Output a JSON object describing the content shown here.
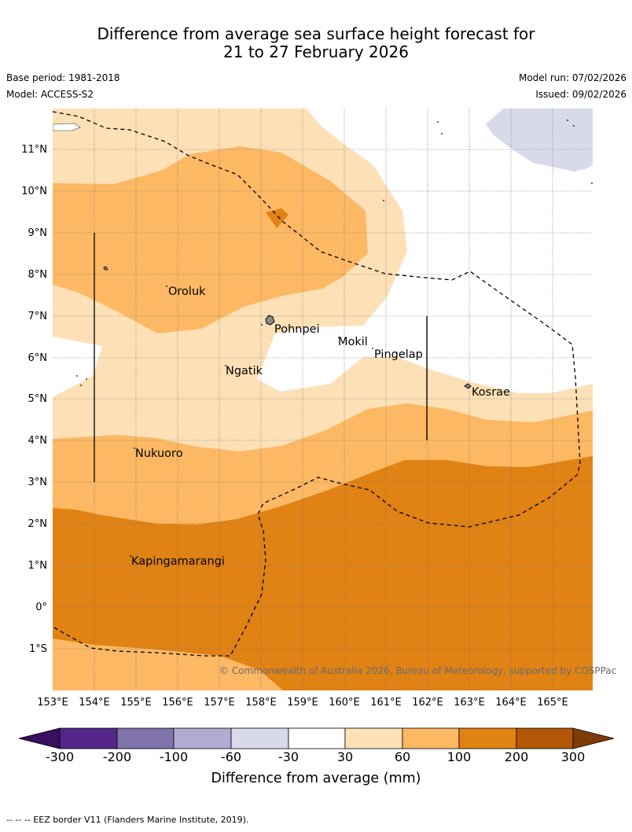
{
  "title": {
    "line1": "Difference from average sea surface height forecast for",
    "line2": "21 to 27 February 2026"
  },
  "meta": {
    "base_period": "Base period: 1981-2018",
    "model": "Model: ACCESS-S2",
    "model_run": "Model run: 07/02/2026",
    "issued": "Issued: 09/02/2026"
  },
  "map": {
    "lat_labels": [
      "11°N",
      "10°N",
      "9°N",
      "8°N",
      "7°N",
      "6°N",
      "5°N",
      "4°N",
      "3°N",
      "2°N",
      "1°N",
      "0°",
      "1°S"
    ],
    "lon_labels": [
      "153°E",
      "154°E",
      "155°E",
      "156°E",
      "157°E",
      "158°E",
      "159°E",
      "160°E",
      "161°E",
      "162°E",
      "163°E",
      "164°E",
      "165°E"
    ],
    "places": [
      "Oroluk",
      "Pohnpei",
      "Mokil",
      "Pingelap",
      "Ngatik",
      "Kosrae",
      "Nukuoro",
      "Kapingamarangi"
    ],
    "credit": "© Commonwealth of Australia 2026, Bureau of Meteorology, supported by COSPPac"
  },
  "colorbar": {
    "ticks": [
      "-300",
      "-200",
      "-100",
      "-60",
      "-30",
      "30",
      "60",
      "100",
      "200",
      "300"
    ],
    "colors": [
      "#3a0f5e",
      "#542788",
      "#8073ac",
      "#b2abd2",
      "#d8daeb",
      "#ffffff",
      "#fee0b6",
      "#fdb863",
      "#e08214",
      "#b35806",
      "#7f3b08"
    ],
    "title": "Difference from average (mm)"
  },
  "footnote": "--  --  -- EEZ border V11 (Flanders Marine Institute, 2019)."
}
